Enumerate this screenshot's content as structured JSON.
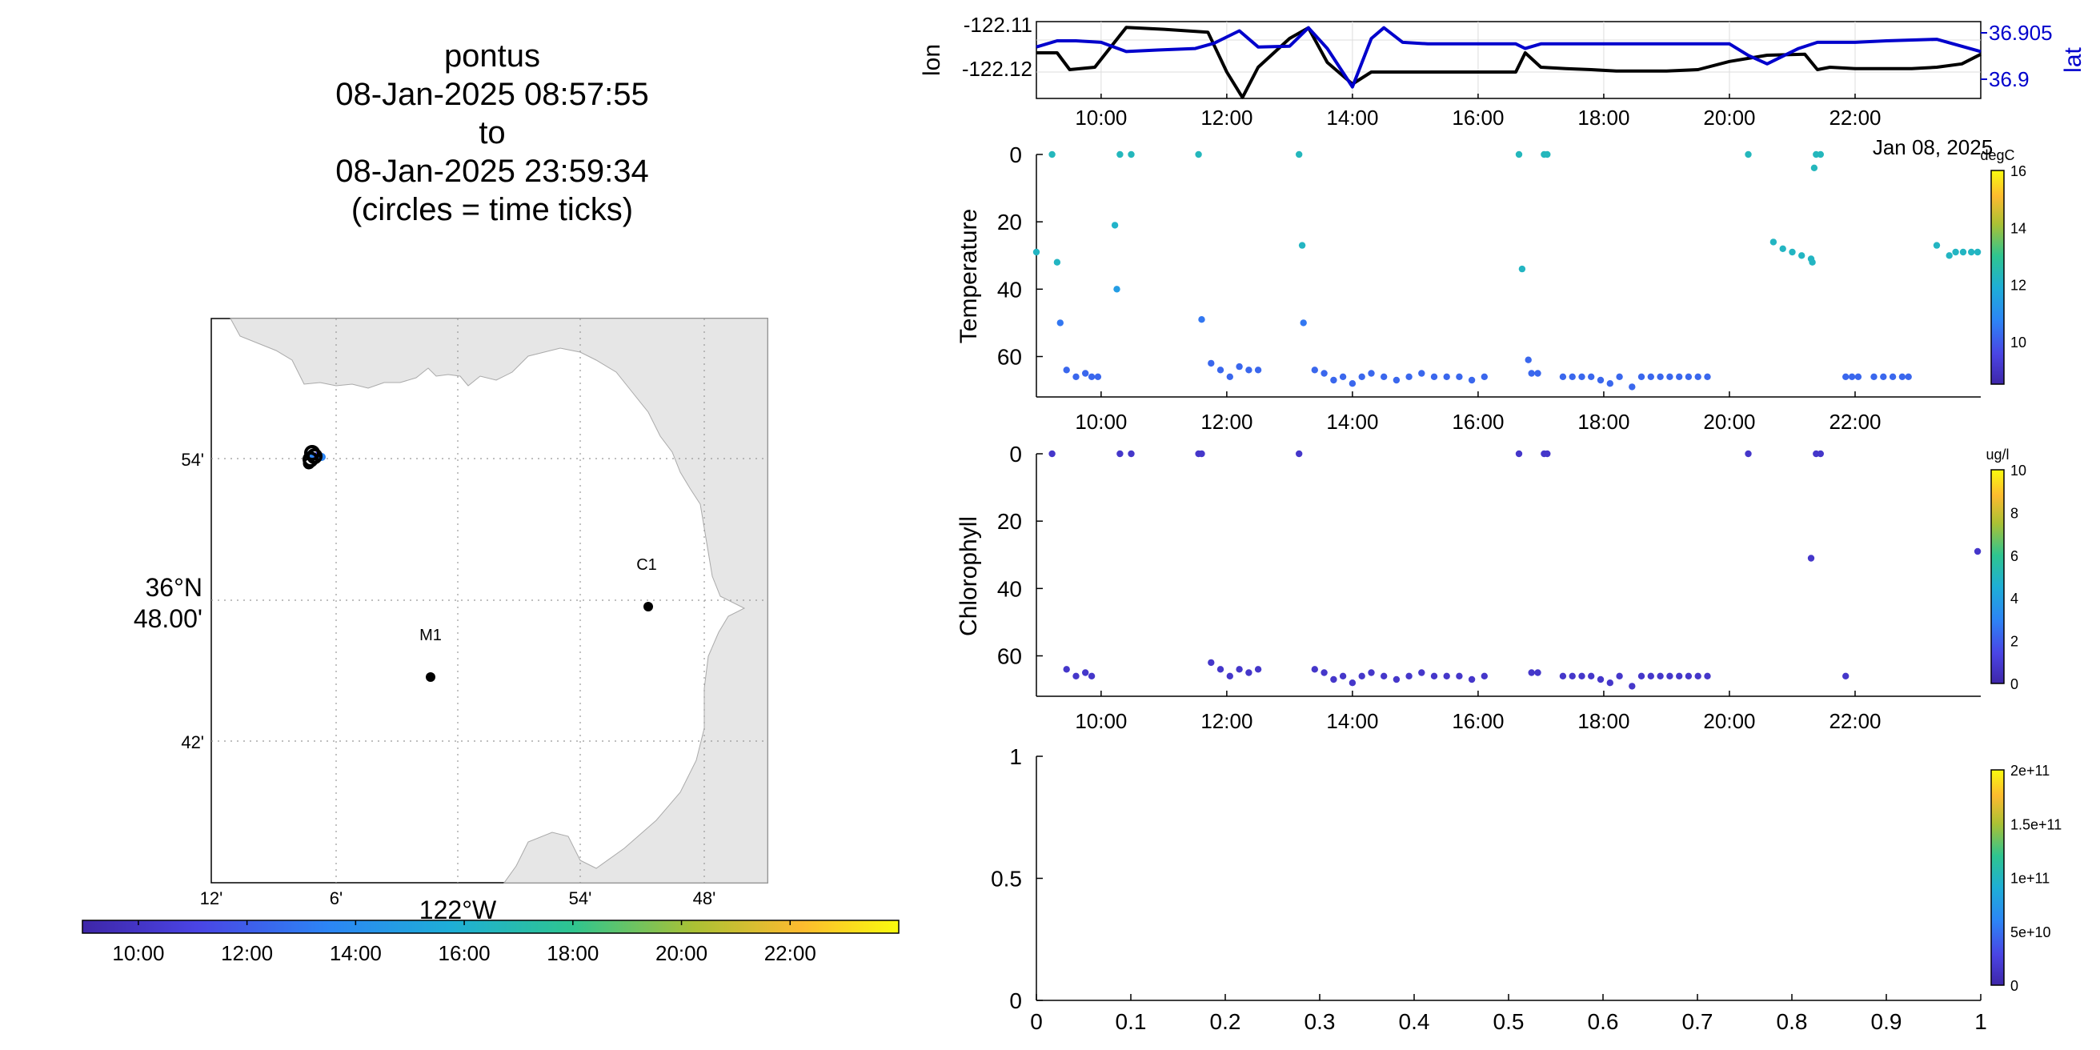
{
  "title_lines": [
    "pontus",
    "08-Jan-2025 08:57:55",
    "to",
    "08-Jan-2025 23:59:34",
    "(circles = time ticks)"
  ],
  "map": {
    "lat_ticks": [
      "54'",
      "42'"
    ],
    "lat_center_label_1": "36°N",
    "lat_center_label_2": "48.00'",
    "lon_ticks": [
      "12'",
      "6'",
      "54'",
      "48'"
    ],
    "lon_center_label": "122°W",
    "stations": [
      {
        "name": "M1"
      },
      {
        "name": "C1"
      }
    ],
    "colorbar_ticks": [
      "10:00",
      "12:00",
      "14:00",
      "16:00",
      "18:00",
      "20:00",
      "22:00"
    ],
    "colorbar_gradient": [
      "#3e26a8",
      "#4a44e4",
      "#2c85f5",
      "#1eaed7",
      "#2ec590",
      "#abc134",
      "#fdbb2f",
      "#f9fb0e"
    ]
  },
  "time_ticks": [
    "10:00",
    "12:00",
    "14:00",
    "16:00",
    "18:00",
    "20:00",
    "22:00"
  ],
  "date_label": "Jan 08, 2025",
  "nav_panel": {
    "ylabel_left": "lon",
    "ylabel_right": "lat",
    "left_ticks": [
      "-122.11",
      "-122.12"
    ],
    "right_ticks": [
      "36.905",
      "36.9"
    ],
    "left_color": "#000000",
    "right_color": "#0000cc"
  },
  "temp_panel": {
    "ylabel": "Temperature",
    "y_ticks": [
      "0",
      "20",
      "40",
      "60"
    ],
    "cb_label": "degC",
    "cb_ticks": [
      "16",
      "14",
      "12",
      "10"
    ]
  },
  "chl_panel": {
    "ylabel": "Chlorophyll",
    "y_ticks": [
      "0",
      "20",
      "40",
      "60"
    ],
    "cb_label": "ug/l",
    "cb_ticks": [
      "10",
      "8",
      "6",
      "4",
      "2",
      "0"
    ]
  },
  "empty_panel": {
    "y_ticks": [
      "1",
      "0.5",
      "0"
    ],
    "x_ticks": [
      "0",
      "0.1",
      "0.2",
      "0.3",
      "0.4",
      "0.5",
      "0.6",
      "0.7",
      "0.8",
      "0.9",
      "1"
    ],
    "cb_ticks": [
      "2e+11",
      "1.5e+11",
      "1e+11",
      "5e+10",
      "0"
    ]
  },
  "chart_data": [
    {
      "type": "line",
      "title": "",
      "xlabel": "",
      "ylabel": "lon",
      "y2label": "lat",
      "xlim": [
        8.97,
        24.0
      ],
      "ylim": [
        -122.125,
        -122.109
      ],
      "y2lim": [
        36.897,
        36.907
      ],
      "series": [
        {
          "axis": "left",
          "color": "#000000",
          "x": [
            8.97,
            9.3,
            9.5,
            9.9,
            10.4,
            11.0,
            11.7,
            12.0,
            12.25,
            12.5,
            13.0,
            13.3,
            13.6,
            14.0,
            14.3,
            14.7,
            15.1,
            15.5,
            15.9,
            16.3,
            16.6,
            16.75,
            17.0,
            17.4,
            17.8,
            18.2,
            18.6,
            19.0,
            19.5,
            20.0,
            20.6,
            21.2,
            21.4,
            21.6,
            22.0,
            22.5,
            22.9,
            23.3,
            23.7,
            24.0
          ],
          "y": [
            -122.1155,
            -122.1155,
            -122.119,
            -122.1185,
            -122.1102,
            -122.1106,
            -122.1112,
            -122.1195,
            -122.1248,
            -122.1185,
            -122.1125,
            -122.1103,
            -122.1175,
            -122.122,
            -122.1195,
            -122.1195,
            -122.1195,
            -122.1195,
            -122.1195,
            -122.1195,
            -122.1195,
            -122.1155,
            -122.1185,
            -122.1188,
            -122.119,
            -122.1193,
            -122.1193,
            -122.1193,
            -122.119,
            -122.1173,
            -122.116,
            -122.1158,
            -122.119,
            -122.1185,
            -122.1188,
            -122.1188,
            -122.1188,
            -122.1185,
            -122.1178,
            -122.1158
          ]
        },
        {
          "axis": "right",
          "color": "#0000cc",
          "x": [
            8.97,
            9.3,
            9.6,
            10.0,
            10.4,
            10.9,
            11.5,
            11.8,
            12.2,
            12.5,
            13.0,
            13.3,
            13.6,
            14.0,
            14.3,
            14.5,
            14.8,
            15.2,
            15.6,
            16.0,
            16.3,
            16.6,
            16.75,
            17.0,
            17.4,
            17.8,
            18.2,
            18.6,
            19.0,
            19.5,
            20.0,
            20.3,
            20.6,
            21.1,
            21.4,
            22.0,
            22.5,
            23.3,
            24.0
          ],
          "y": [
            36.9037,
            36.9045,
            36.9045,
            36.9043,
            36.9031,
            36.9033,
            36.9035,
            36.9042,
            36.9058,
            36.9037,
            36.9038,
            36.9062,
            36.9035,
            36.8985,
            36.9048,
            36.9062,
            36.9043,
            36.9041,
            36.9041,
            36.9041,
            36.9041,
            36.9041,
            36.9035,
            36.9041,
            36.9041,
            36.9041,
            36.9041,
            36.9041,
            36.9041,
            36.9041,
            36.9041,
            36.9026,
            36.9015,
            36.9035,
            36.9043,
            36.9043,
            36.9045,
            36.9047,
            36.9031
          ]
        }
      ]
    },
    {
      "type": "scatter",
      "title": "",
      "xlabel": "",
      "ylabel": "Temperature",
      "xlim": [
        8.97,
        24.0
      ],
      "ylim": [
        72,
        0
      ],
      "colorbar": {
        "label": "degC",
        "range": [
          8.5,
          16
        ]
      },
      "points": [
        [
          8.97,
          29,
          12.2
        ],
        [
          9.22,
          0,
          12.3
        ],
        [
          9.3,
          32,
          12.2
        ],
        [
          9.35,
          50,
          10.5
        ],
        [
          9.45,
          64,
          10.2
        ],
        [
          9.6,
          66,
          10.2
        ],
        [
          9.75,
          65,
          10.2
        ],
        [
          9.85,
          66,
          10.2
        ],
        [
          9.95,
          66,
          10.2
        ],
        [
          10.22,
          21,
          12.1
        ],
        [
          10.25,
          40,
          11.4
        ],
        [
          10.3,
          0,
          12.3
        ],
        [
          10.48,
          0,
          12.3
        ],
        [
          11.55,
          0,
          12.3
        ],
        [
          11.6,
          49,
          10.5
        ],
        [
          11.75,
          62,
          10.2
        ],
        [
          11.9,
          64,
          10.2
        ],
        [
          12.05,
          66,
          10.2
        ],
        [
          12.2,
          63,
          10.2
        ],
        [
          12.35,
          64,
          10.2
        ],
        [
          12.5,
          64,
          10.2
        ],
        [
          13.15,
          0,
          12.3
        ],
        [
          13.2,
          27,
          12.2
        ],
        [
          13.22,
          50,
          10.5
        ],
        [
          13.4,
          64,
          10.2
        ],
        [
          13.55,
          65,
          10.2
        ],
        [
          13.7,
          67,
          10.2
        ],
        [
          13.85,
          66,
          10.2
        ],
        [
          14.0,
          68,
          10.2
        ],
        [
          14.15,
          66,
          10.2
        ],
        [
          14.3,
          65,
          10.2
        ],
        [
          14.5,
          66,
          10.2
        ],
        [
          14.7,
          67,
          10.2
        ],
        [
          14.9,
          66,
          10.2
        ],
        [
          15.1,
          65,
          10.2
        ],
        [
          15.3,
          66,
          10.2
        ],
        [
          15.5,
          66,
          10.2
        ],
        [
          15.7,
          66,
          10.2
        ],
        [
          15.9,
          67,
          10.2
        ],
        [
          16.1,
          66,
          10.2
        ],
        [
          16.65,
          0,
          12.3
        ],
        [
          16.7,
          34,
          12.2
        ],
        [
          16.8,
          61,
          10.2
        ],
        [
          16.85,
          65,
          10.2
        ],
        [
          16.95,
          65,
          10.2
        ],
        [
          17.05,
          0,
          12.3
        ],
        [
          17.1,
          0,
          12.3
        ],
        [
          17.35,
          66,
          10.2
        ],
        [
          17.5,
          66,
          10.2
        ],
        [
          17.65,
          66,
          10.2
        ],
        [
          17.8,
          66,
          10.2
        ],
        [
          17.95,
          67,
          10.2
        ],
        [
          18.1,
          68,
          10.2
        ],
        [
          18.25,
          66,
          10.2
        ],
        [
          18.45,
          69,
          10.2
        ],
        [
          18.6,
          66,
          10.2
        ],
        [
          18.75,
          66,
          10.2
        ],
        [
          18.9,
          66,
          10.2
        ],
        [
          19.05,
          66,
          10.2
        ],
        [
          19.2,
          66,
          10.2
        ],
        [
          19.35,
          66,
          10.2
        ],
        [
          19.5,
          66,
          10.2
        ],
        [
          19.65,
          66,
          10.2
        ],
        [
          20.3,
          0,
          12.3
        ],
        [
          20.7,
          26,
          12.2
        ],
        [
          20.85,
          28,
          12.2
        ],
        [
          21.0,
          29,
          12.2
        ],
        [
          21.15,
          30,
          12.2
        ],
        [
          21.3,
          31,
          12.2
        ],
        [
          21.32,
          32,
          12.2
        ],
        [
          21.35,
          4,
          12.3
        ],
        [
          21.38,
          0,
          12.3
        ],
        [
          21.45,
          0,
          12.3
        ],
        [
          21.85,
          66,
          10.2
        ],
        [
          21.95,
          66,
          10.2
        ],
        [
          22.05,
          66,
          10.2
        ],
        [
          22.3,
          66,
          10.2
        ],
        [
          22.45,
          66,
          10.2
        ],
        [
          22.6,
          66,
          10.2
        ],
        [
          22.75,
          66,
          10.2
        ],
        [
          22.85,
          66,
          10.2
        ],
        [
          23.3,
          27,
          12.2
        ],
        [
          23.5,
          30,
          12.2
        ],
        [
          23.6,
          29,
          12.2
        ],
        [
          23.72,
          29,
          12.2
        ],
        [
          23.85,
          29,
          12.2
        ],
        [
          23.95,
          29,
          12.2
        ]
      ]
    },
    {
      "type": "scatter",
      "title": "",
      "xlabel": "",
      "ylabel": "Chlorophyll",
      "xlim": [
        8.97,
        24.0
      ],
      "ylim": [
        72,
        0
      ],
      "colorbar": {
        "label": "ug/l",
        "range": [
          0,
          10
        ]
      },
      "points": [
        [
          9.22,
          0,
          0.8
        ],
        [
          9.45,
          64,
          0.8
        ],
        [
          9.6,
          66,
          0.8
        ],
        [
          9.75,
          65,
          0.8
        ],
        [
          9.85,
          66,
          0.8
        ],
        [
          10.3,
          0,
          0.8
        ],
        [
          10.48,
          0,
          0.8
        ],
        [
          11.55,
          0,
          0.8
        ],
        [
          11.6,
          0,
          0.8
        ],
        [
          11.75,
          62,
          0.8
        ],
        [
          11.9,
          64,
          0.8
        ],
        [
          12.05,
          66,
          0.8
        ],
        [
          12.2,
          64,
          0.8
        ],
        [
          12.35,
          65,
          0.8
        ],
        [
          12.5,
          64,
          0.8
        ],
        [
          13.15,
          0,
          0.8
        ],
        [
          13.4,
          64,
          0.8
        ],
        [
          13.55,
          65,
          0.8
        ],
        [
          13.7,
          67,
          0.8
        ],
        [
          13.85,
          66,
          0.8
        ],
        [
          14.0,
          68,
          0.8
        ],
        [
          14.15,
          66,
          0.8
        ],
        [
          14.3,
          65,
          0.8
        ],
        [
          14.5,
          66,
          0.8
        ],
        [
          14.7,
          67,
          0.8
        ],
        [
          14.9,
          66,
          0.8
        ],
        [
          15.1,
          65,
          0.8
        ],
        [
          15.3,
          66,
          0.8
        ],
        [
          15.5,
          66,
          0.8
        ],
        [
          15.7,
          66,
          0.8
        ],
        [
          15.9,
          67,
          0.8
        ],
        [
          16.1,
          66,
          0.8
        ],
        [
          16.65,
          0,
          0.8
        ],
        [
          16.85,
          65,
          0.8
        ],
        [
          16.95,
          65,
          0.8
        ],
        [
          17.05,
          0,
          0.8
        ],
        [
          17.1,
          0,
          0.8
        ],
        [
          17.35,
          66,
          0.8
        ],
        [
          17.5,
          66,
          0.8
        ],
        [
          17.65,
          66,
          0.8
        ],
        [
          17.8,
          66,
          0.8
        ],
        [
          17.95,
          67,
          0.8
        ],
        [
          18.1,
          68,
          0.8
        ],
        [
          18.25,
          66,
          0.8
        ],
        [
          18.45,
          69,
          0.8
        ],
        [
          18.6,
          66,
          0.8
        ],
        [
          18.75,
          66,
          0.8
        ],
        [
          18.9,
          66,
          0.8
        ],
        [
          19.05,
          66,
          0.8
        ],
        [
          19.2,
          66,
          0.8
        ],
        [
          19.35,
          66,
          0.8
        ],
        [
          19.5,
          66,
          0.8
        ],
        [
          19.65,
          66,
          0.8
        ],
        [
          20.3,
          0,
          0.8
        ],
        [
          21.3,
          31,
          0.8
        ],
        [
          21.38,
          0,
          0.8
        ],
        [
          21.45,
          0,
          0.8
        ],
        [
          21.85,
          66,
          0.8
        ],
        [
          23.95,
          29,
          0.8
        ]
      ]
    },
    {
      "type": "scatter",
      "title": "",
      "xlabel": "",
      "ylabel": "",
      "xlim": [
        0,
        1
      ],
      "ylim": [
        0,
        1
      ],
      "colorbar": {
        "range": [
          0,
          200000000000
        ]
      },
      "points": []
    }
  ]
}
